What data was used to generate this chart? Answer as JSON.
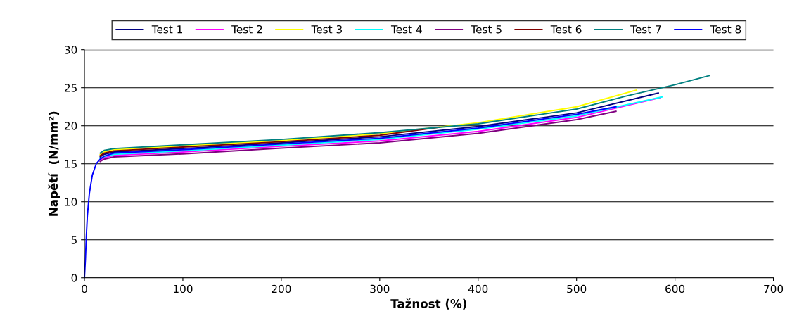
{
  "chart_data": {
    "type": "line",
    "xlabel": "Tažnost (%)",
    "ylabel": "Napětí  (N/mm²)",
    "xlim": [
      0,
      700
    ],
    "xticks": [
      0,
      100,
      200,
      300,
      400,
      500,
      600,
      700
    ],
    "ylim": [
      0,
      30
    ],
    "yticks": [
      0,
      5,
      10,
      15,
      20,
      25,
      30
    ],
    "grid": "y",
    "legend": "top",
    "marker": "none",
    "line_style": "solid",
    "series": [
      {
        "name": "Test 1",
        "color": "#000080",
        "x": [
          16,
          20,
          30,
          100,
          200,
          300,
          400,
          500,
          583
        ],
        "values": [
          15.9,
          16.25,
          16.55,
          17.0,
          17.75,
          18.55,
          19.9,
          21.7,
          24.3
        ]
      },
      {
        "name": "Test 2",
        "color": "#ff00ff",
        "x": [
          16,
          20,
          30,
          100,
          200,
          300,
          400,
          500,
          585
        ],
        "values": [
          15.5,
          15.8,
          16.1,
          16.55,
          17.3,
          18.0,
          19.25,
          21.1,
          23.7
        ]
      },
      {
        "name": "Test 3",
        "color": "#ffff00",
        "x": [
          16,
          20,
          30,
          100,
          200,
          300,
          400,
          500,
          561
        ],
        "values": [
          16.2,
          16.55,
          16.85,
          17.35,
          18.05,
          18.95,
          20.4,
          22.5,
          24.7
        ]
      },
      {
        "name": "Test 4",
        "color": "#00ffff",
        "x": [
          16,
          20,
          30,
          100,
          200,
          300,
          400,
          500,
          587
        ],
        "values": [
          15.65,
          15.95,
          16.25,
          16.7,
          17.45,
          18.2,
          19.55,
          21.3,
          23.8
        ]
      },
      {
        "name": "Test 5",
        "color": "#800080",
        "x": [
          16,
          20,
          30,
          100,
          200,
          300,
          400,
          500,
          540
        ],
        "values": [
          15.3,
          15.6,
          15.9,
          16.3,
          17.05,
          17.75,
          19.0,
          20.8,
          21.9
        ]
      },
      {
        "name": "Test 6",
        "color": "#800000",
        "x": [
          16,
          20,
          30,
          100,
          200,
          300,
          360
        ],
        "values": [
          16.05,
          16.4,
          16.7,
          17.2,
          17.9,
          18.75,
          19.8
        ]
      },
      {
        "name": "Test 7",
        "color": "#008080",
        "x": [
          16,
          20,
          30,
          100,
          200,
          300,
          400,
          500,
          550,
          600,
          635
        ],
        "values": [
          16.4,
          16.75,
          17.0,
          17.5,
          18.2,
          19.1,
          20.25,
          22.2,
          23.9,
          25.4,
          26.6
        ]
      },
      {
        "name": "Test 8",
        "color": "#0000ff",
        "x": [
          0,
          1,
          2,
          3,
          5,
          8,
          12,
          16,
          20,
          30,
          100,
          200,
          300,
          400,
          500,
          540
        ],
        "values": [
          0,
          2.4,
          5.7,
          8.2,
          11.1,
          13.5,
          15.0,
          15.6,
          16.0,
          16.4,
          16.85,
          17.6,
          18.35,
          19.7,
          21.5,
          22.5
        ]
      }
    ]
  }
}
